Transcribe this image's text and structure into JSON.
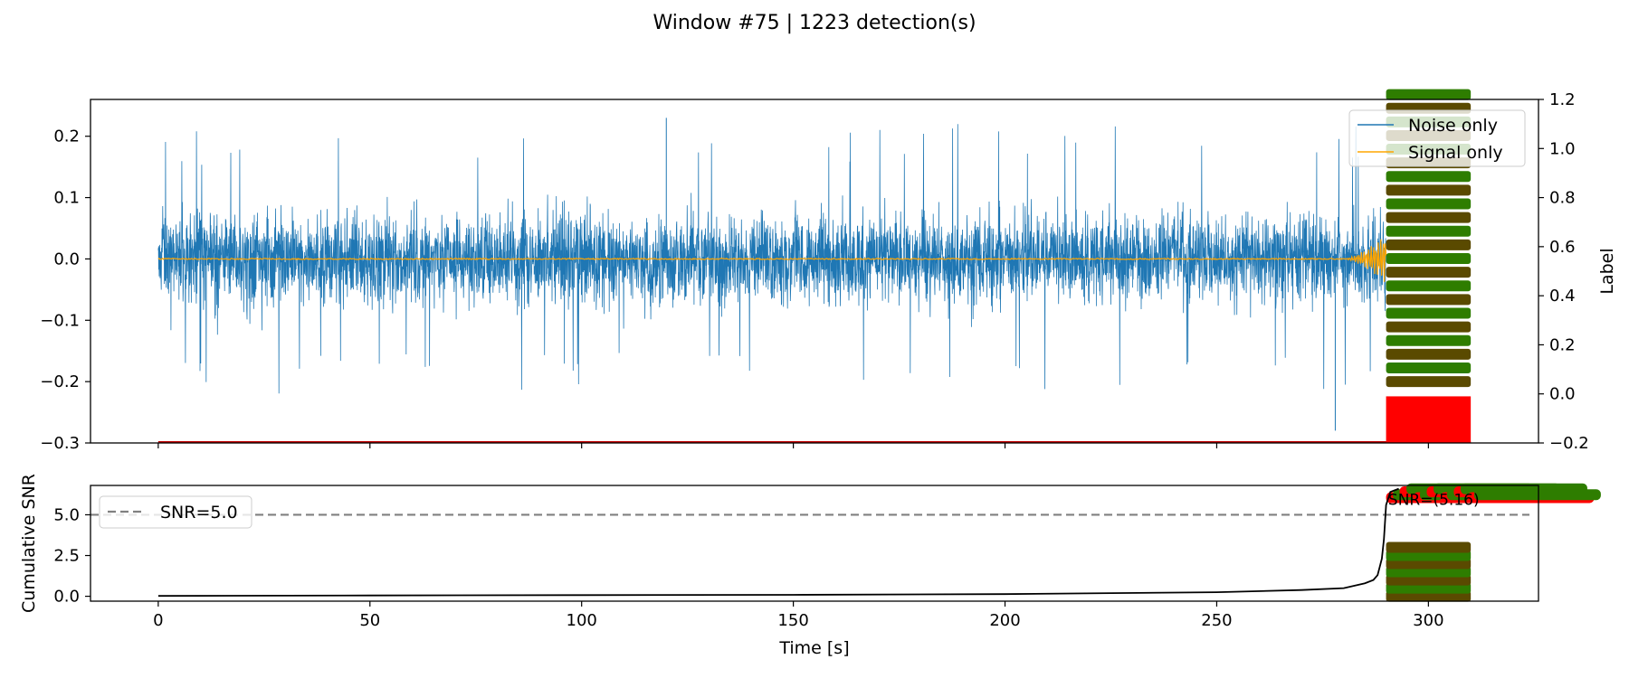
{
  "figure": {
    "title": "Window #75 | 1223 detection(s)"
  },
  "chart_data": [
    {
      "type": "line",
      "panel": "waveform",
      "xlim": [
        -16,
        326
      ],
      "ylim": [
        -0.3,
        0.26
      ],
      "yticks": [
        -0.3,
        -0.2,
        -0.1,
        0.0,
        0.1,
        0.2
      ],
      "ytick_labels": [
        "−0.3",
        "−0.2",
        "−0.1",
        "0.0",
        "0.1",
        "0.2"
      ],
      "xticks": [
        0,
        50,
        100,
        150,
        200,
        250,
        300
      ],
      "right_axis": {
        "ylabel": "Label",
        "ylim": [
          -0.2,
          1.2
        ],
        "yticks": [
          -0.2,
          0.0,
          0.2,
          0.4,
          0.6,
          0.8,
          1.0,
          1.2
        ],
        "ytick_labels": [
          "−0.2",
          "0.0",
          "0.2",
          "0.4",
          "0.6",
          "0.8",
          "1.0",
          "1.2"
        ]
      },
      "series": [
        {
          "name": "Noise only",
          "color": "#1f77b4",
          "x_range": [
            0,
            290
          ],
          "amplitude_band": [
            -0.1,
            0.1
          ],
          "peak_extremes": [
            -0.28,
            0.23
          ]
        },
        {
          "name": "Signal only",
          "color": "#ffa500",
          "x_range": [
            0,
            290
          ],
          "baseline": 0.0,
          "onset_time": 280,
          "onset_peak": 0.04
        }
      ],
      "detection_markers": {
        "x_range": [
          290,
          310
        ],
        "label_levels": [
          0.0,
          0.2,
          0.8,
          1.2
        ],
        "colors": [
          "#ff0000",
          "#5a4a00",
          "#2e7d00"
        ]
      },
      "legend": {
        "location": "upper right",
        "entries": [
          "Noise only",
          "Signal only"
        ]
      },
      "grid": false
    },
    {
      "type": "line",
      "panel": "cumulative_snr",
      "xlabel": "Time [s]",
      "ylabel": "Cumulative SNR",
      "xlim": [
        -16,
        326
      ],
      "ylim": [
        -0.3,
        6.8
      ],
      "yticks": [
        0.0,
        2.5,
        5.0
      ],
      "ytick_labels": [
        "0.0",
        "2.5",
        "5.0"
      ],
      "xticks": [
        0,
        50,
        100,
        150,
        200,
        250,
        300
      ],
      "xtick_labels": [
        "0",
        "50",
        "100",
        "150",
        "200",
        "250",
        "300"
      ],
      "series": [
        {
          "name": "",
          "color": "#000000",
          "x": [
            0,
            50,
            100,
            150,
            200,
            250,
            270,
            280,
            285,
            287,
            288,
            289,
            289.5,
            290,
            291,
            293
          ],
          "y": [
            0.02,
            0.05,
            0.07,
            0.09,
            0.13,
            0.25,
            0.38,
            0.5,
            0.8,
            1.0,
            1.3,
            2.3,
            3.5,
            5.6,
            6.4,
            6.6
          ]
        }
      ],
      "threshold": {
        "name": "SNR=5.0",
        "value": 5.0,
        "color": "#808080",
        "style": "dashed"
      },
      "detection_markers": {
        "x_range": [
          290,
          310
        ],
        "levels": [
          0.0,
          0.5,
          1.0,
          1.5,
          2.0,
          2.5,
          3.0
        ],
        "colors": [
          "#5a4a00",
          "#2e7d00"
        ]
      },
      "annotation": {
        "text": "SNR=(5.16)",
        "color": "#ff0000",
        "x": 290.5,
        "y": 5.6
      },
      "legend": {
        "location": "upper left",
        "entries": [
          "SNR=5.0"
        ]
      },
      "grid": false
    }
  ]
}
